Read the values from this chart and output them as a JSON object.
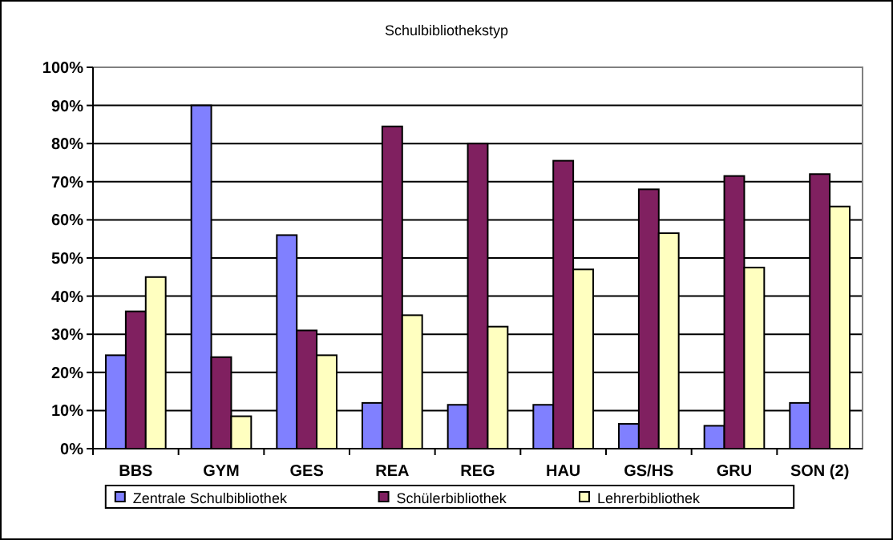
{
  "chart_data": {
    "type": "bar",
    "title": "Schulbibliothekstyp",
    "categories": [
      "BBS",
      "GYM",
      "GES",
      "REA",
      "REG",
      "HAU",
      "GS/HS",
      "GRU",
      "SON (2)"
    ],
    "series": [
      {
        "name": "Zentrale Schulbibliothek",
        "color": "#8080ff",
        "values": [
          24.5,
          90,
          56,
          12,
          11.5,
          11.5,
          6.5,
          6,
          12
        ]
      },
      {
        "name": "Schülerbibliothek",
        "color": "#802060",
        "values": [
          36,
          24,
          31,
          84.5,
          80,
          75.5,
          68,
          71.5,
          72
        ]
      },
      {
        "name": "Lehrerbibliothek",
        "color": "#ffffc0",
        "values": [
          45,
          8.5,
          24.5,
          35,
          32,
          47,
          56.5,
          47.5,
          63.5
        ]
      }
    ],
    "ylim": [
      0,
      100
    ],
    "yticks": [
      {
        "value": 0,
        "label": "0%"
      },
      {
        "value": 10,
        "label": "10%"
      },
      {
        "value": 20,
        "label": "20%"
      },
      {
        "value": 30,
        "label": "30%"
      },
      {
        "value": 40,
        "label": "40%"
      },
      {
        "value": 50,
        "label": "50%"
      },
      {
        "value": 60,
        "label": "60%"
      },
      {
        "value": 70,
        "label": "70%"
      },
      {
        "value": 80,
        "label": "80%"
      },
      {
        "value": 90,
        "label": "90%"
      },
      {
        "value": 100,
        "label": "100%"
      }
    ],
    "grid": "y",
    "legend": "bottom"
  }
}
